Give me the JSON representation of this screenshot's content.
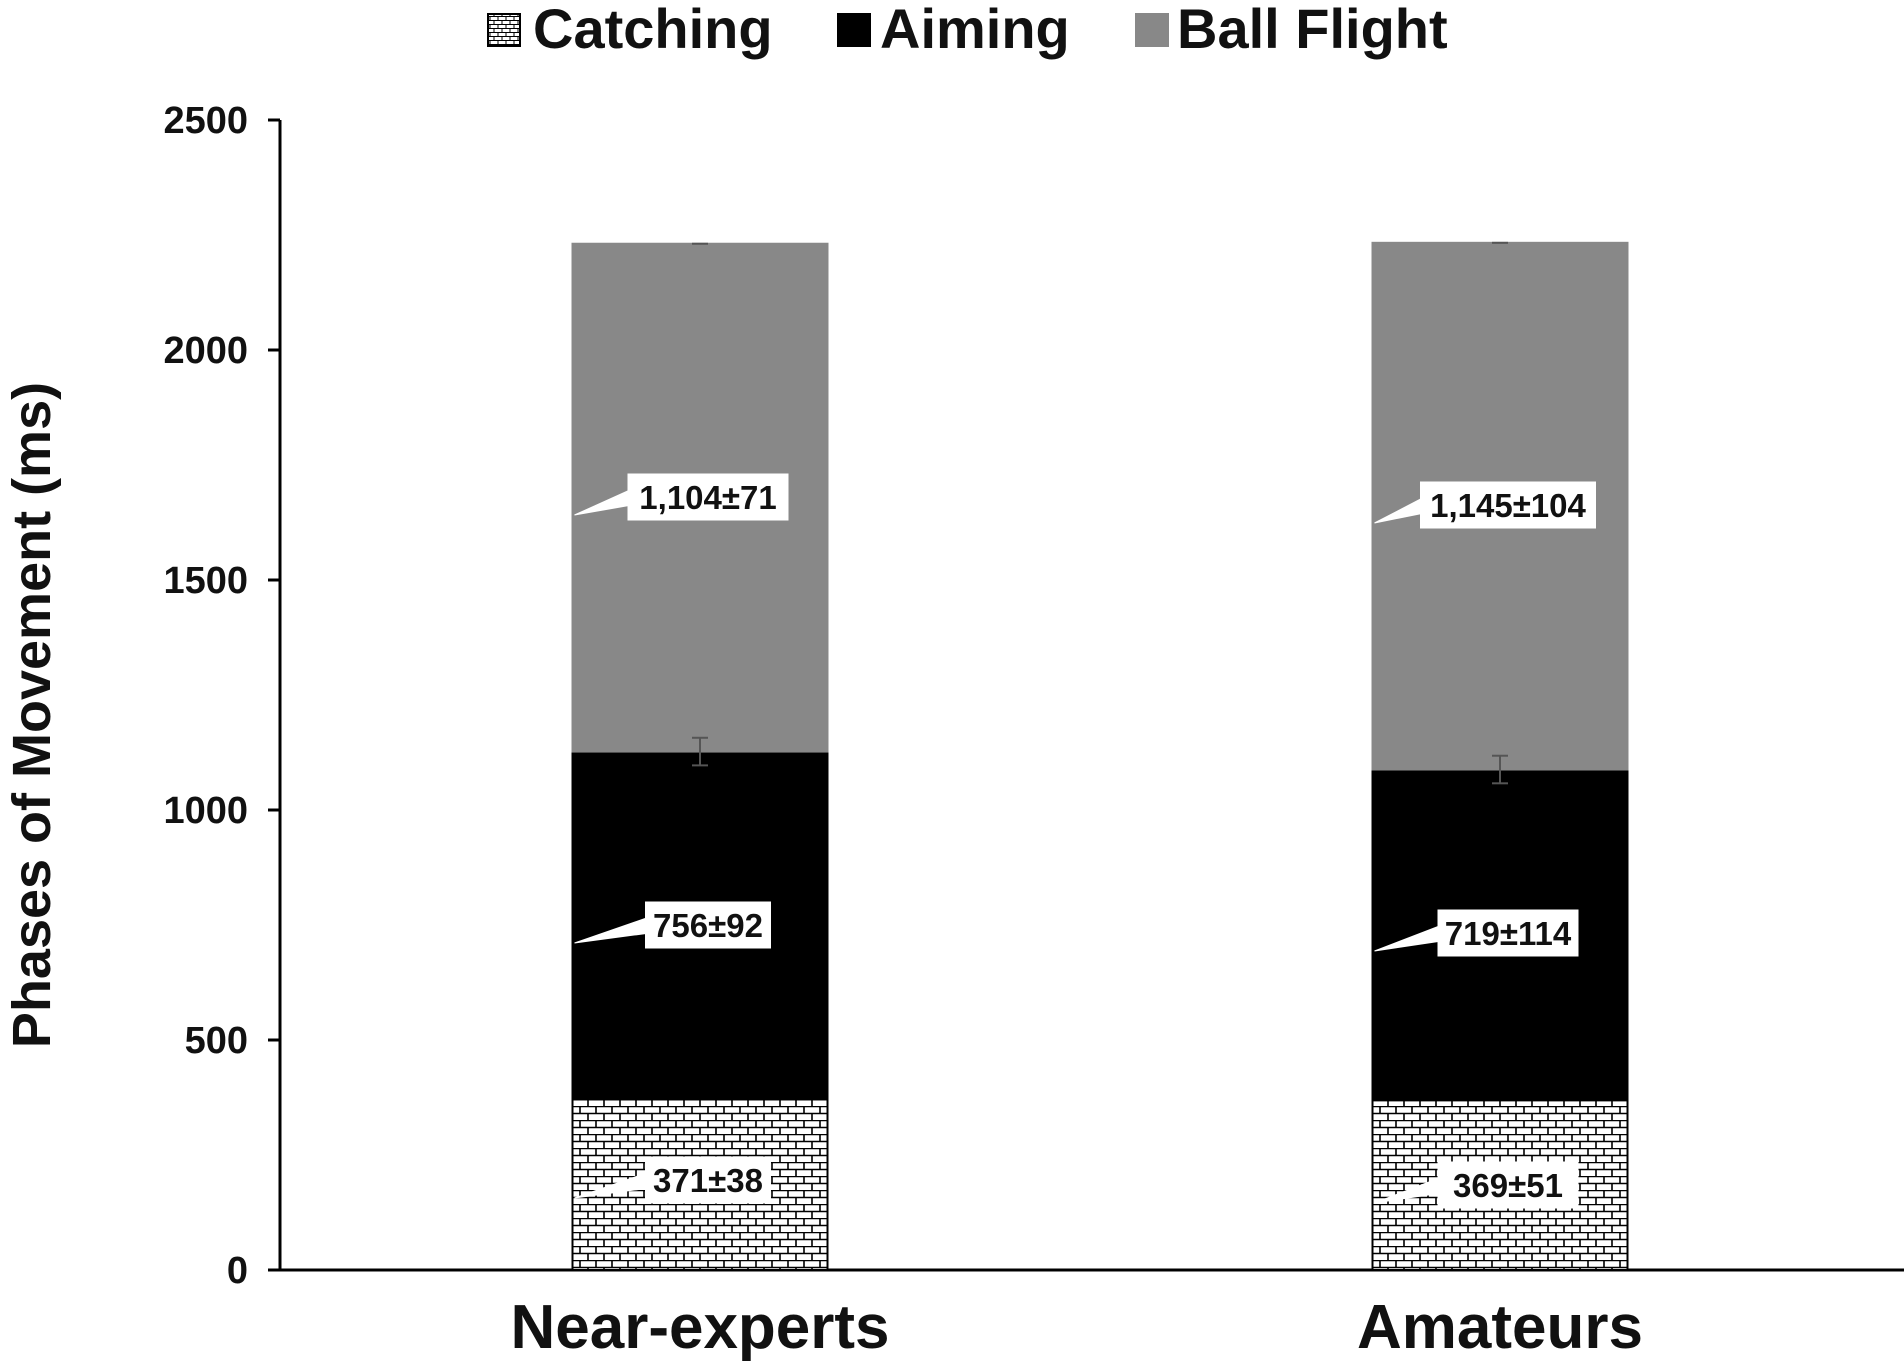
{
  "chart_data": {
    "type": "bar",
    "stacked": true,
    "categories": [
      "Near-experts",
      "Amateurs"
    ],
    "series": [
      {
        "name": "Catching",
        "values": [
          371,
          369
        ],
        "pattern": "bricks",
        "fill": "#ffffff",
        "stroke": "#000000"
      },
      {
        "name": "Aiming",
        "values": [
          756,
          719
        ],
        "pattern": "solid",
        "fill": "#000000"
      },
      {
        "name": "Ball Flight",
        "values": [
          1104,
          1145
        ],
        "pattern": "solid",
        "fill": "#888888"
      }
    ],
    "data_labels": [
      [
        "371±38",
        "369±51"
      ],
      [
        "756±92",
        "719±114"
      ],
      [
        "1,104±71",
        "1,145±104"
      ]
    ],
    "ylabel": "Phases of Movement (ms)",
    "xlabel": "",
    "ylim": [
      0,
      2500
    ],
    "yticks": [
      0,
      500,
      1000,
      1500,
      2000,
      2500
    ],
    "ytick_labels": [
      "0",
      "500",
      "1000",
      "1500",
      "2000",
      "2500"
    ],
    "legend_position": "top-center",
    "grid": false
  }
}
